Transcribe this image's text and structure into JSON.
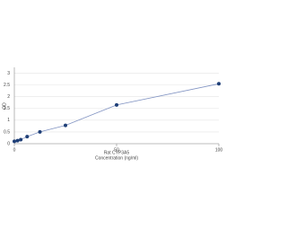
{
  "chart_data": {
    "type": "line",
    "x_label": "Rat CYP3A5",
    "x_sublabel": "Concentration (ng/ml)",
    "y_label": "OD",
    "x": [
      0,
      1.56,
      3.13,
      6.25,
      12.5,
      25,
      50,
      100
    ],
    "series": [
      {
        "name": "Rat CYP3A5",
        "color": "#1f3f77",
        "line_color": "#8193c2",
        "values": [
          0.1,
          0.13,
          0.17,
          0.3,
          0.5,
          0.78,
          1.65,
          2.55
        ]
      }
    ],
    "xlim": [
      0,
      100
    ],
    "xticks": [
      0,
      50,
      100
    ],
    "ylim": [
      0,
      3.25
    ],
    "yticks": [
      0,
      0.5,
      1,
      1.5,
      2,
      2.5,
      3
    ],
    "grid": true
  }
}
